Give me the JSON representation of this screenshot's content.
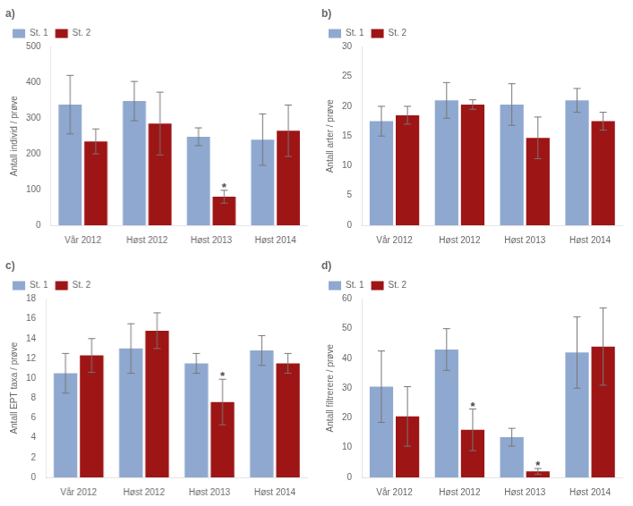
{
  "chart_data": [
    {
      "type": "bar",
      "title": "a)",
      "ylabel": "Antall individ / prøve",
      "categories": [
        "Vår 2012",
        "Høst 2012",
        "Høst 2013",
        "Høst 2014"
      ],
      "series": [
        {
          "name": "St. 1",
          "color": "#8fa8d0",
          "values": [
            338,
            348,
            248,
            240
          ],
          "errors": [
            82,
            55,
            25,
            72
          ]
        },
        {
          "name": "St. 2",
          "color": "#9e1515",
          "values": [
            235,
            285,
            80,
            265
          ],
          "errors": [
            35,
            88,
            18,
            72
          ]
        }
      ],
      "annotations": [
        {
          "text": "*",
          "series": "St. 2",
          "category": "Høst 2013"
        }
      ],
      "ylim": [
        0,
        500
      ],
      "yticks": [
        0,
        100,
        200,
        300,
        400,
        500
      ],
      "grid": false,
      "legend": "upper left"
    },
    {
      "type": "bar",
      "title": "b)",
      "ylabel": "Antall arter / prøve",
      "categories": [
        "Vår 2012",
        "Høst 2012",
        "Høst 2013",
        "Høst 2014"
      ],
      "series": [
        {
          "name": "St. 1",
          "color": "#8fa8d0",
          "values": [
            17.5,
            21.0,
            20.3,
            21.0
          ],
          "errors": [
            2.5,
            3.0,
            3.5,
            2.0
          ]
        },
        {
          "name": "St. 2",
          "color": "#9e1515",
          "values": [
            18.5,
            20.3,
            14.7,
            17.5
          ],
          "errors": [
            1.5,
            0.8,
            3.5,
            1.5
          ]
        }
      ],
      "ylim": [
        0,
        30
      ],
      "yticks": [
        0,
        5,
        10,
        15,
        20,
        25,
        30
      ],
      "grid": false,
      "legend": "upper left"
    },
    {
      "type": "bar",
      "title": "c)",
      "ylabel": "Antall EPT taxa / prøve",
      "categories": [
        "Vår 2012",
        "Høst 2012",
        "Høst 2013",
        "Høst 2014"
      ],
      "series": [
        {
          "name": "St. 1",
          "color": "#8fa8d0",
          "values": [
            10.5,
            13.0,
            11.5,
            12.8
          ],
          "errors": [
            2.0,
            2.5,
            1.0,
            1.5
          ]
        },
        {
          "name": "St. 2",
          "color": "#9e1515",
          "values": [
            12.3,
            14.8,
            7.6,
            11.5
          ],
          "errors": [
            1.7,
            1.8,
            2.3,
            1.0
          ]
        }
      ],
      "annotations": [
        {
          "text": "*",
          "series": "St. 2",
          "category": "Høst 2013"
        }
      ],
      "ylim": [
        0,
        18
      ],
      "yticks": [
        0,
        2,
        4,
        6,
        8,
        10,
        12,
        14,
        16,
        18
      ],
      "grid": false,
      "legend": "upper left"
    },
    {
      "type": "bar",
      "title": "d)",
      "ylabel": "Antall filtrerere / prøve",
      "categories": [
        "Vår 2012",
        "Høst 2012",
        "Høst 2013",
        "Høst 2014"
      ],
      "series": [
        {
          "name": "St. 1",
          "color": "#8fa8d0",
          "values": [
            30.5,
            43.0,
            13.5,
            42.0
          ],
          "errors": [
            12,
            7,
            3,
            12
          ]
        },
        {
          "name": "St. 2",
          "color": "#9e1515",
          "values": [
            20.5,
            16.0,
            2.0,
            44.0
          ],
          "errors": [
            10,
            7,
            1,
            13
          ]
        }
      ],
      "annotations": [
        {
          "text": "*",
          "series": "St. 2",
          "category": "Høst 2012"
        },
        {
          "text": "*",
          "series": "St. 2",
          "category": "Høst 2013"
        }
      ],
      "ylim": [
        0,
        60
      ],
      "yticks": [
        0,
        10,
        20,
        30,
        40,
        50,
        60
      ],
      "grid": false,
      "legend": "upper left"
    }
  ]
}
